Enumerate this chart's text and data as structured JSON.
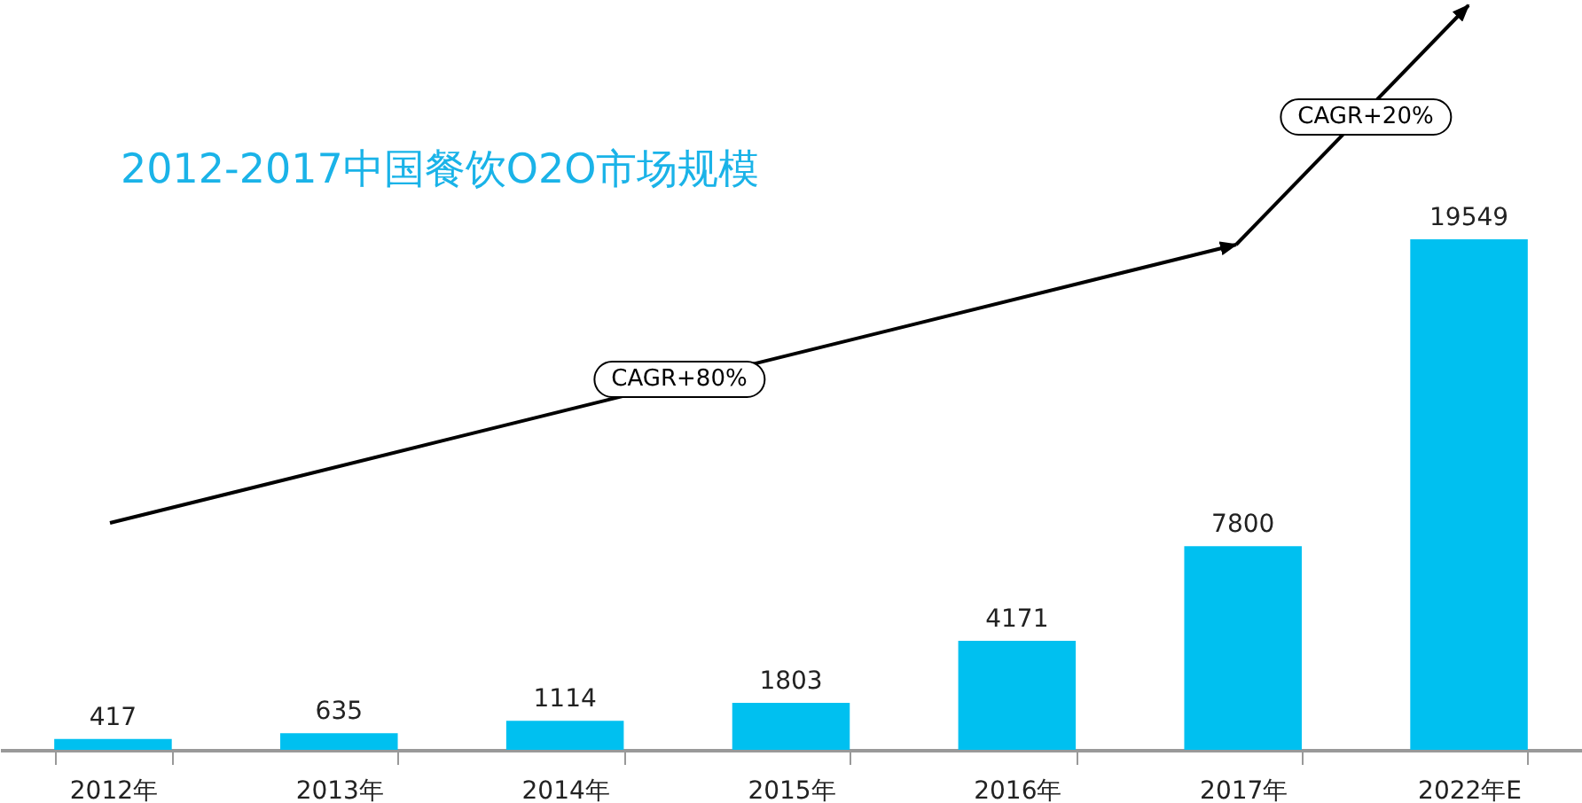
{
  "chart_data": {
    "type": "bar",
    "title": "2012-2017中国餐饮O2O市场规模",
    "categories": [
      "2012年",
      "2013年",
      "2014年",
      "2015年",
      "2016年",
      "2017年",
      "2022年E"
    ],
    "values": [
      417,
      635,
      1114,
      1803,
      4171,
      7800,
      19549
    ],
    "color": "#00c0f0",
    "data_labels": true,
    "annotations": [
      "CAGR+80%",
      "CAGR+20%"
    ]
  }
}
